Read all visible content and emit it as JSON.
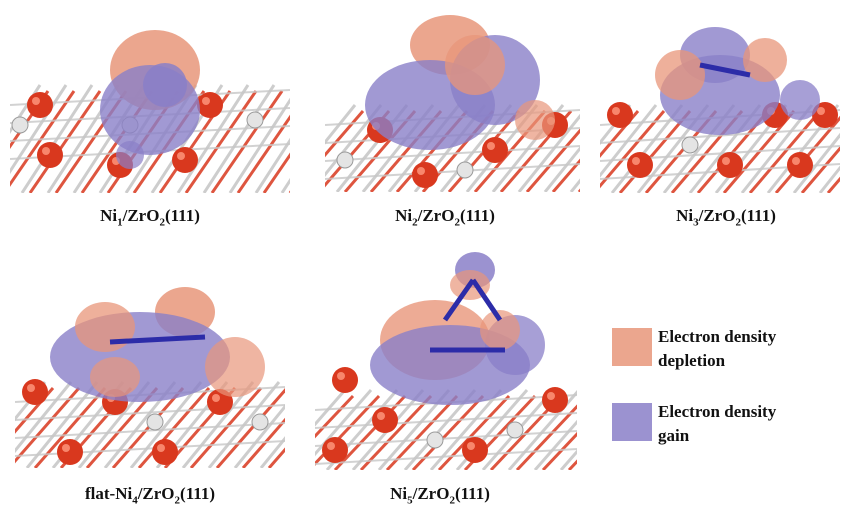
{
  "colors": {
    "depletion": "#e8967a",
    "gain": "#8a7fc8",
    "oxygen": "#d9381e",
    "zirconium": "#c8c8c8",
    "nickel_bond": "#2c2ca8"
  },
  "panels": [
    {
      "prefix": "Ni",
      "n": "1",
      "mid": "/ZrO",
      "o": "2",
      "suffix": "(111)"
    },
    {
      "prefix": "Ni",
      "n": "2",
      "mid": "/ZrO",
      "o": "2",
      "suffix": "(111)"
    },
    {
      "prefix": "Ni",
      "n": "3",
      "mid": "/ZrO",
      "o": "2",
      "suffix": "(111)"
    },
    {
      "prefix": "flat-Ni",
      "n": "4",
      "mid": "/ZrO",
      "o": "2",
      "suffix": "(111)"
    },
    {
      "prefix": "Ni",
      "n": "5",
      "mid": "/ZrO",
      "o": "2",
      "suffix": "(111)"
    }
  ],
  "legend": [
    {
      "label_line1": "Electron density",
      "label_line2": "depletion",
      "color": "#e8967a"
    },
    {
      "label_line1": "Electron density",
      "label_line2": "gain",
      "color": "#8a7fc8"
    }
  ]
}
